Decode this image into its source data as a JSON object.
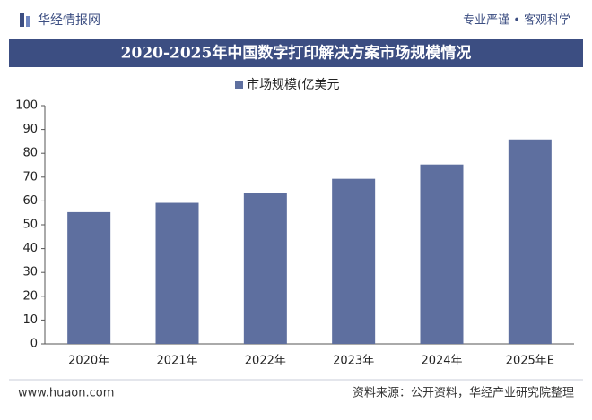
{
  "header": {
    "brand": "华经情报网",
    "slogan": "专业严谨 • 客观科学"
  },
  "chart_data": {
    "type": "bar",
    "title": "2020-2025年中国数字打印解决方案市场规模情况",
    "categories": [
      "2020年",
      "2021年",
      "2022年",
      "2023年",
      "2024年",
      "2025年E"
    ],
    "series": [
      {
        "name": "市场规模(亿美元",
        "color": "#5e6f9f",
        "values": [
          55.3,
          59.2,
          63.3,
          69.3,
          75.3,
          85.8
        ]
      }
    ],
    "ylim": [
      0,
      100
    ],
    "yticks": [
      0,
      10,
      20,
      30,
      40,
      50,
      60,
      70,
      80,
      90,
      100
    ]
  },
  "footer": {
    "website": "www.huaon.com",
    "source": "资料来源：公开资料，华经产业研究院整理"
  }
}
